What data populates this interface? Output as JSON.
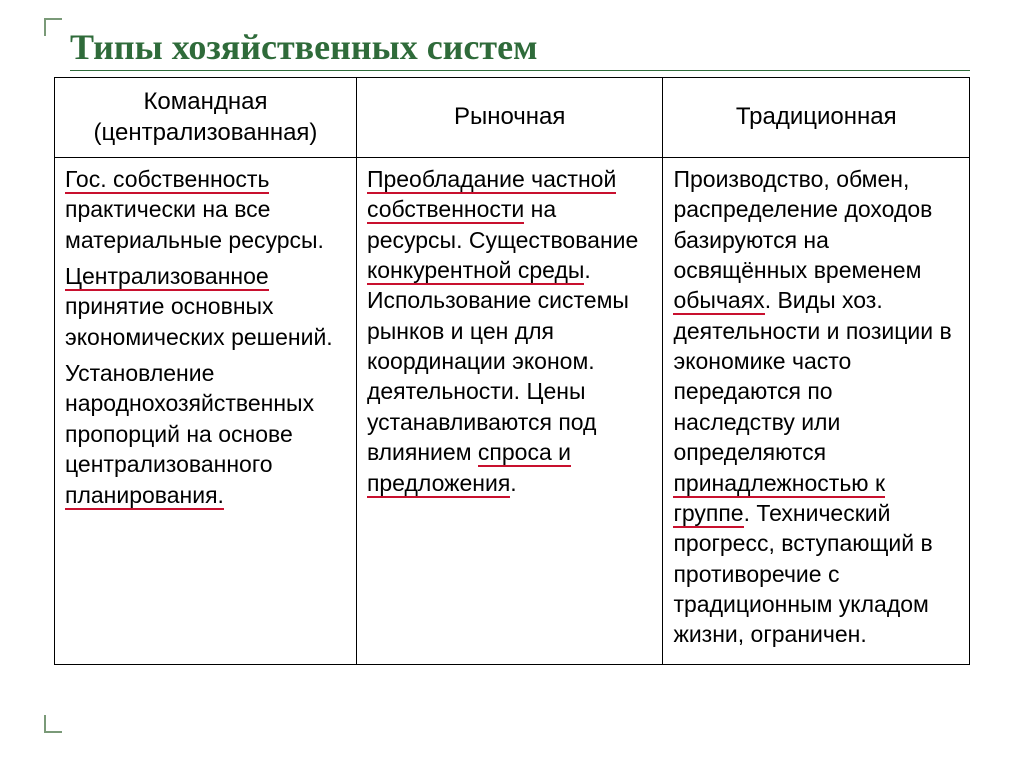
{
  "title": "Типы хозяйственных систем",
  "colors": {
    "title_color": "#2f6b3a",
    "underline_color": "#c8102e",
    "border_color": "#000000",
    "corner_color": "#7a9a78",
    "background": "#ffffff",
    "text_color": "#000000"
  },
  "typography": {
    "title_font": "Times New Roman",
    "body_font": "Arial",
    "title_fontsize_pt": 27,
    "body_fontsize_pt": 17
  },
  "table": {
    "columns": [
      {
        "header_line1": "Командная",
        "header_line2": "(централизованная)"
      },
      {
        "header_line1": "Рыночная",
        "header_line2": ""
      },
      {
        "header_line1": "Традиционная",
        "header_line2": ""
      }
    ],
    "cells": {
      "col1": {
        "p1_u1": "Гос. собственность",
        "p1_rest": " практически на все материальные ресурсы.",
        "p2_u1": "Централизованное",
        "p2_rest": " принятие основных экономических решений.",
        "p3_pre": "Установление народнохозяйственных пропорций на основе централизованного ",
        "p3_u1": "планирования."
      },
      "col2": {
        "p1_u1": "Преобладание частной собственности",
        "p1_mid": " на ресурсы. Существование ",
        "p1_u2": "конкурентной среды",
        "p1_post": ". Использование системы рынков и цен для координации эконом. деятельности. Цены устанавливаются под влиянием ",
        "p1_u3": "спроса и предложения",
        "p1_end": "."
      },
      "col3": {
        "p1_pre": "Производство, обмен, распределение доходов базируются на освящённых временем ",
        "p1_u1": "обычаях",
        "p1_mid": ". Виды хоз. деятельности и позиции в экономике часто передаются по наследству или определяются ",
        "p1_u2": "принадлежностью к группе",
        "p1_post": ". Технический прогресс, вступающий в противоречие с традиционным укладом жизни, ограничен."
      }
    }
  }
}
